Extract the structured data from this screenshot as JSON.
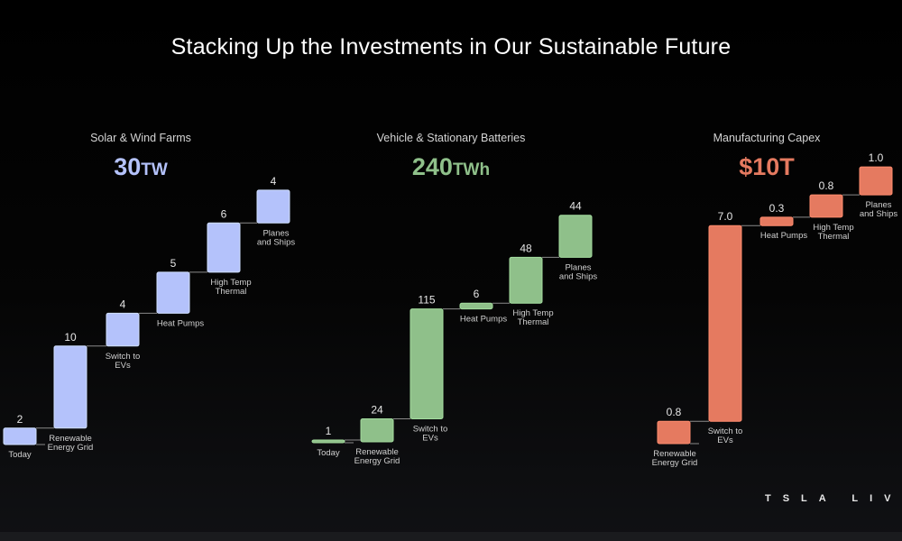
{
  "title": "Stacking Up the Investments in Our Sustainable Future",
  "logo": "TSLA LIVE",
  "panels": [
    {
      "subtitle": "Solar & Wind Farms",
      "total_value": "30",
      "total_unit": "TW",
      "color": "#b4c2fb"
    },
    {
      "subtitle": "Vehicle & Stationary Batteries",
      "total_value": "240",
      "total_unit": "TWh",
      "color": "#8fc08a"
    },
    {
      "subtitle": "Manufacturing Capex",
      "total_value": "$10T",
      "total_unit": "",
      "color": "#e57a60"
    }
  ],
  "chart_data": [
    {
      "type": "bar",
      "subtype": "waterfall",
      "title": "Solar & Wind Farms",
      "total": "30TW",
      "categories": [
        "Today",
        "Renewable Energy Grid",
        "Switch to EVs",
        "Heat Pumps",
        "High Temp Thermal",
        "Planes and Ships"
      ],
      "values": [
        2,
        10,
        4,
        5,
        6,
        4
      ],
      "value_labels": [
        "2",
        "10",
        "4",
        "5",
        "6",
        "4"
      ],
      "color": "#b4c2fb"
    },
    {
      "type": "bar",
      "subtype": "waterfall",
      "title": "Vehicle & Stationary Batteries",
      "total": "240TWh",
      "categories": [
        "Today",
        "Renewable Energy Grid",
        "Switch to EVs",
        "Heat Pumps",
        "High Temp Thermal",
        "Planes and Ships"
      ],
      "values": [
        1,
        24,
        115,
        6,
        48,
        44
      ],
      "value_labels": [
        "1",
        "24",
        "115",
        "6",
        "48",
        "44"
      ],
      "color": "#8fc08a"
    },
    {
      "type": "bar",
      "subtype": "waterfall",
      "title": "Manufacturing Capex",
      "total": "$10T",
      "categories": [
        "Renewable Energy Grid",
        "Switch to EVs",
        "Heat Pumps",
        "High Temp Thermal",
        "Planes and Ships"
      ],
      "values": [
        0.8,
        7.0,
        0.3,
        0.8,
        1.0
      ],
      "value_labels": [
        "0.8",
        "7.0",
        "0.3",
        "0.8",
        "1.0"
      ],
      "color": "#e57a60"
    }
  ]
}
